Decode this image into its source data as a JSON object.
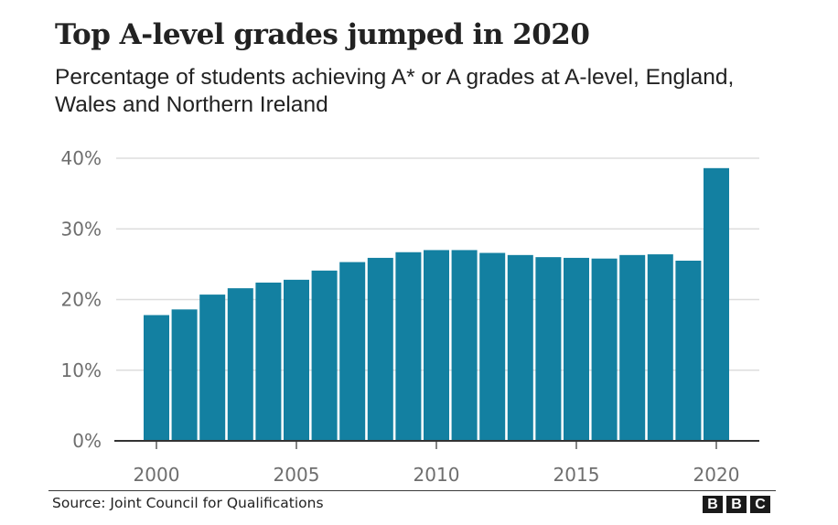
{
  "header": {
    "title": "Top A-level grades jumped in 2020",
    "subtitle": "Percentage of students achieving A* or A grades at A-level, England, Wales and Northern Ireland"
  },
  "footer": {
    "source": "Source: Joint Council for Qualifications",
    "logo_letters": [
      "B",
      "B",
      "C"
    ]
  },
  "colors": {
    "bar": "#1380a1",
    "grid": "#dddddd",
    "axis": "#333333",
    "tick_text": "#6e6e6e"
  },
  "chart_data": {
    "type": "bar",
    "title": "Top A-level grades jumped in 2020",
    "subtitle": "Percentage of students achieving A* or A grades at A-level, England, Wales and Northern Ireland",
    "xlabel": "",
    "ylabel": "",
    "categories": [
      "2000",
      "2001",
      "2002",
      "2003",
      "2004",
      "2005",
      "2006",
      "2007",
      "2008",
      "2009",
      "2010",
      "2011",
      "2012",
      "2013",
      "2014",
      "2015",
      "2016",
      "2017",
      "2018",
      "2019",
      "2020"
    ],
    "values": [
      17.8,
      18.6,
      20.7,
      21.6,
      22.4,
      22.8,
      24.1,
      25.3,
      25.9,
      26.7,
      27.0,
      27.0,
      26.6,
      26.3,
      26.0,
      25.9,
      25.8,
      26.3,
      26.4,
      25.5,
      38.6
    ],
    "ylim": [
      0,
      40
    ],
    "yticks": [
      0,
      10,
      20,
      30,
      40
    ],
    "ytick_labels": [
      "0%",
      "10%",
      "20%",
      "30%",
      "40%"
    ],
    "xticks": [
      "2000",
      "2005",
      "2010",
      "2015",
      "2020"
    ],
    "grid": true,
    "legend": null,
    "source": "Source: Joint Council for Qualifications"
  }
}
